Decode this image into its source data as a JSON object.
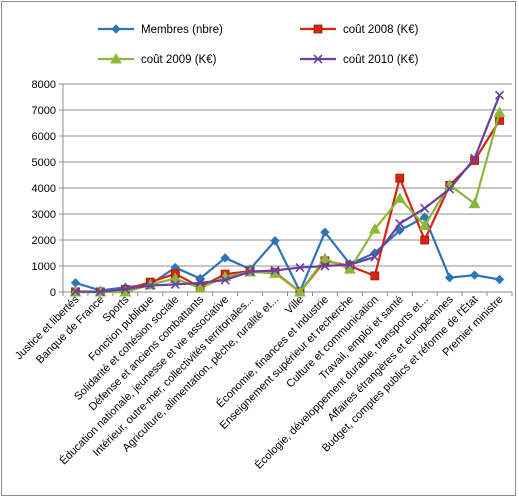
{
  "chart_data": {
    "type": "line",
    "title": "",
    "xlabel": "",
    "ylabel": "",
    "ylim": [
      0,
      8000
    ],
    "yticks": [
      0,
      1000,
      2000,
      3000,
      4000,
      5000,
      6000,
      7000,
      8000
    ],
    "grid": "horizontal",
    "legend_position": "top",
    "categories": [
      "Justice et libertés",
      "Banque de France",
      "Sports",
      "Fonction publique",
      "Solidarité et cohésion sociale",
      "Défense et anciens combattants",
      "Éducation nationale, jeunesse et vie associative",
      "Intérieur, outre-mer, collectivités territoriales...",
      "Agriculture, alimentation, pêche, ruralité et...",
      "Ville",
      "Économie, finances et industrie",
      "Enseignement supérieur et recherche",
      "Culture et communication",
      "Travail, emploi et santé",
      "Écologie, développement durable, transports et...",
      "Affaires étrangères et européennes",
      "Budget, comptes publics et réforme de l'État",
      "Premier ministre"
    ],
    "series": [
      {
        "name": "Membres (nbre)",
        "color": "#2e75b6",
        "marker": "diamond",
        "values": [
          350,
          60,
          180,
          290,
          940,
          520,
          1310,
          880,
          1970,
          20,
          2300,
          1080,
          1500,
          2370,
          2880,
          550,
          650,
          480
        ]
      },
      {
        "name": "coût 2008 (K€)",
        "color": "#d9230f",
        "marker": "square",
        "values": [
          0,
          0,
          90,
          380,
          700,
          190,
          690,
          800,
          760,
          0,
          1200,
          1000,
          620,
          4380,
          2000,
          4100,
          5060,
          6600
        ]
      },
      {
        "name": "coût 2009 (K€)",
        "color": "#8cb83a",
        "marker": "triangle",
        "values": [
          0,
          0,
          0,
          280,
          520,
          150,
          580,
          770,
          720,
          0,
          1280,
          880,
          2420,
          3600,
          2560,
          4120,
          3400,
          6900
        ]
      },
      {
        "name": "coût 2010 (K€)",
        "color": "#6b3fa0",
        "marker": "x",
        "values": [
          20,
          10,
          110,
          250,
          290,
          350,
          460,
          780,
          830,
          940,
          1000,
          1050,
          1350,
          2630,
          3220,
          3960,
          5140,
          7570
        ]
      }
    ]
  }
}
